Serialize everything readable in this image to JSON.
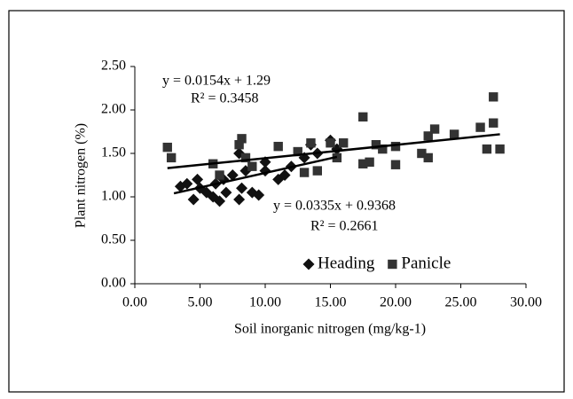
{
  "chart_data": {
    "type": "scatter",
    "xlabel": "Soil inorganic nitrogen (mg/kg-1)",
    "ylabel": "Plant nitrogen (%)",
    "xlim": [
      0,
      30
    ],
    "ylim": [
      0,
      2.5
    ],
    "xticks": [
      {
        "value": 0,
        "label": "0.00"
      },
      {
        "value": 5,
        "label": "5.00"
      },
      {
        "value": 10,
        "label": "10.00"
      },
      {
        "value": 15,
        "label": "15.00"
      },
      {
        "value": 20,
        "label": "20.00"
      },
      {
        "value": 25,
        "label": "25.00"
      },
      {
        "value": 30,
        "label": "30.00"
      }
    ],
    "yticks": [
      {
        "value": 0,
        "label": "0.00"
      },
      {
        "value": 0.5,
        "label": "0.50"
      },
      {
        "value": 1,
        "label": "1.00"
      },
      {
        "value": 1.5,
        "label": "1.50"
      },
      {
        "value": 2,
        "label": "2.00"
      },
      {
        "value": 2.5,
        "label": "2.50"
      }
    ],
    "legend": "lower right",
    "series": [
      {
        "name": "Heading",
        "marker": "diamond",
        "color": "#111111",
        "x": [
          3.5,
          4,
          4.5,
          4.8,
          5,
          5.5,
          6,
          6.2,
          6.5,
          6.8,
          7,
          7.5,
          8,
          8.2,
          8.5,
          9,
          9.5,
          10,
          11,
          11.5,
          12,
          13,
          13.5,
          14,
          15,
          15.5,
          8,
          10
        ],
        "values": [
          1.12,
          1.15,
          0.97,
          1.2,
          1.1,
          1.05,
          1.0,
          1.15,
          0.95,
          1.2,
          1.05,
          1.25,
          0.97,
          1.1,
          1.3,
          1.05,
          1.02,
          1.3,
          1.2,
          1.25,
          1.35,
          1.45,
          1.6,
          1.5,
          1.65,
          1.55,
          1.5,
          1.4
        ],
        "trend": {
          "x": [
            3,
            15.5
          ],
          "values": [
            1.04,
            1.46
          ]
        }
      },
      {
        "name": "Panicle",
        "marker": "square",
        "color": "#333333",
        "x": [
          2.5,
          2.8,
          6,
          6.5,
          8,
          8.2,
          8.5,
          9,
          11,
          12.5,
          13,
          13.5,
          14,
          15,
          15.5,
          16,
          17.5,
          17.5,
          18,
          18.5,
          19,
          20,
          20,
          22,
          22.5,
          22.5,
          23,
          24.5,
          26.5,
          27,
          27.5,
          27.5,
          28
        ],
        "values": [
          1.57,
          1.45,
          1.38,
          1.25,
          1.6,
          1.67,
          1.45,
          1.35,
          1.58,
          1.52,
          1.28,
          1.62,
          1.3,
          1.62,
          1.45,
          1.62,
          1.92,
          1.38,
          1.4,
          1.6,
          1.55,
          1.37,
          1.58,
          1.5,
          1.45,
          1.7,
          1.78,
          1.72,
          1.8,
          1.55,
          2.15,
          1.85,
          1.55
        ],
        "trend": {
          "x": [
            2.5,
            28
          ],
          "values": [
            1.33,
            1.72
          ]
        }
      }
    ],
    "annotations": [
      "y = 0.0154x + 1.29",
      "R² = 0.3458",
      "y = 0.0335x + 0.9368",
      "R² = 0.2661"
    ]
  }
}
